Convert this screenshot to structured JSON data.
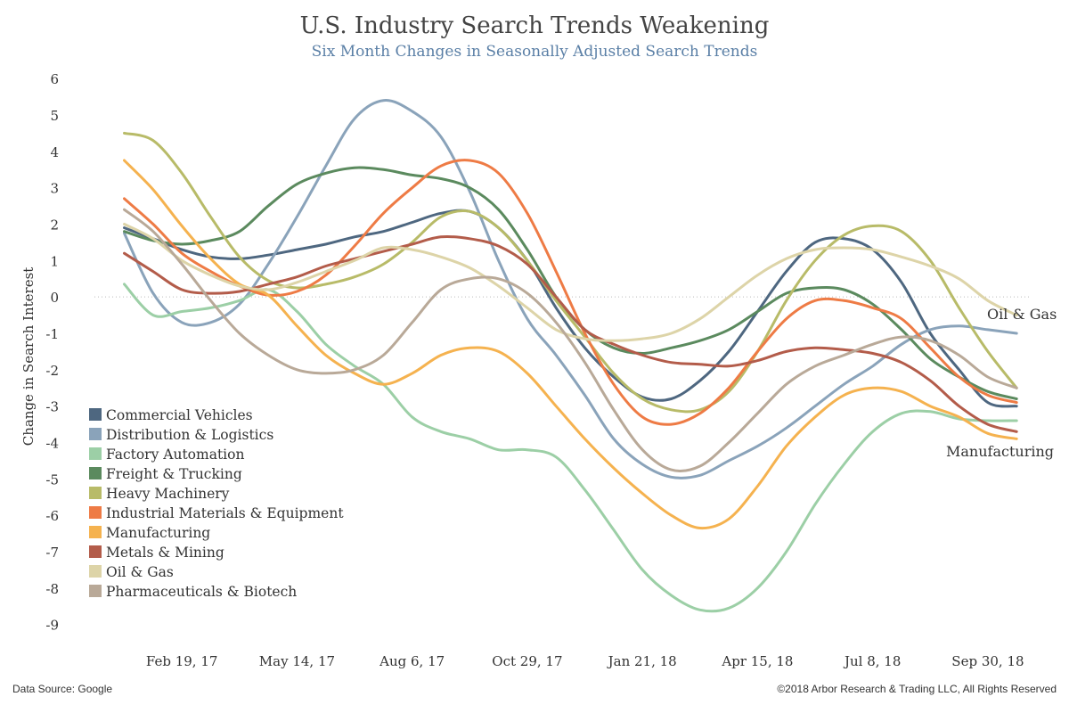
{
  "title": "U.S. Industry Search Trends Weakening",
  "subtitle": "Six Month Changes in Seasonally Adjusted Search Trends",
  "source": "Data Source: Google",
  "copyright": "©2018 Arbor Research & Trading LLC,  All Rights Reserved",
  "chart_data": {
    "type": "line",
    "title": "U.S. Industry Search Trends Weakening",
    "subtitle": "Six Month Changes in Seasonally Adjusted Search Trends",
    "ylabel": "Change in Search Interest",
    "xlabel": "",
    "ylim": [
      -9.4,
      6.2
    ],
    "yticks": [
      6,
      5,
      4,
      3,
      2,
      1,
      0,
      -1,
      -2,
      -3,
      -4,
      -5,
      -6,
      -7,
      -8,
      -9
    ],
    "x_range": [
      "2016-12-25",
      "2018-10-28"
    ],
    "xticks": [
      {
        "date": "2017-02-19",
        "label": "Feb 19, 17"
      },
      {
        "date": "2017-05-14",
        "label": "May 14, 17"
      },
      {
        "date": "2017-08-06",
        "label": "Aug 6, 17"
      },
      {
        "date": "2017-10-29",
        "label": "Oct 29, 17"
      },
      {
        "date": "2018-01-21",
        "label": "Jan 21, 18"
      },
      {
        "date": "2018-04-15",
        "label": "Apr 15, 18"
      },
      {
        "date": "2018-07-08",
        "label": "Jul 8, 18"
      },
      {
        "date": "2018-09-30",
        "label": "Sep 30, 18"
      }
    ],
    "zero_line": true,
    "grid": false,
    "legend_position": "bottom-left",
    "x": [
      "2017-01-08",
      "2017-01-29",
      "2017-02-19",
      "2017-03-12",
      "2017-04-02",
      "2017-04-23",
      "2017-05-14",
      "2017-06-04",
      "2017-06-25",
      "2017-07-16",
      "2017-08-06",
      "2017-08-27",
      "2017-09-17",
      "2017-10-08",
      "2017-10-29",
      "2017-11-19",
      "2017-12-10",
      "2017-12-31",
      "2018-01-21",
      "2018-02-11",
      "2018-03-04",
      "2018-03-25",
      "2018-04-15",
      "2018-05-06",
      "2018-05-27",
      "2018-06-17",
      "2018-07-08",
      "2018-07-29",
      "2018-08-19",
      "2018-09-09",
      "2018-09-30",
      "2018-10-21"
    ],
    "series": [
      {
        "name": "Commercial Vehicles",
        "color": "#4e6780",
        "values": [
          1.9,
          1.6,
          1.3,
          1.1,
          1.05,
          1.15,
          1.3,
          1.45,
          1.65,
          1.8,
          2.05,
          2.3,
          2.35,
          1.9,
          1.0,
          -0.3,
          -1.4,
          -2.2,
          -2.75,
          -2.8,
          -2.3,
          -1.5,
          -0.4,
          0.7,
          1.5,
          1.6,
          1.3,
          0.4,
          -1.0,
          -2.0,
          -2.9,
          -3.0
        ]
      },
      {
        "name": "Distribution & Logistics",
        "color": "#8aa3ba",
        "values": [
          1.75,
          0.1,
          -0.7,
          -0.7,
          -0.2,
          0.9,
          2.2,
          3.6,
          4.9,
          5.4,
          5.1,
          4.4,
          2.9,
          1.0,
          -0.6,
          -1.6,
          -2.7,
          -3.9,
          -4.6,
          -4.95,
          -4.9,
          -4.5,
          -4.1,
          -3.6,
          -3.0,
          -2.4,
          -1.9,
          -1.3,
          -0.9,
          -0.8,
          -0.9,
          -1.0
        ]
      },
      {
        "name": "Factory Automation",
        "color": "#9ccfa6",
        "values": [
          0.35,
          -0.5,
          -0.4,
          -0.3,
          -0.1,
          0.2,
          -0.4,
          -1.3,
          -1.9,
          -2.4,
          -3.3,
          -3.7,
          -3.9,
          -4.2,
          -4.2,
          -4.4,
          -5.3,
          -6.4,
          -7.5,
          -8.2,
          -8.6,
          -8.55,
          -8.0,
          -7.0,
          -5.7,
          -4.6,
          -3.7,
          -3.2,
          -3.15,
          -3.35,
          -3.4,
          -3.4
        ]
      },
      {
        "name": "Freight & Trucking",
        "color": "#5b8a5e",
        "values": [
          1.8,
          1.55,
          1.45,
          1.55,
          1.8,
          2.5,
          3.1,
          3.4,
          3.55,
          3.5,
          3.35,
          3.25,
          3.0,
          2.4,
          1.3,
          0.0,
          -0.9,
          -1.4,
          -1.55,
          -1.4,
          -1.2,
          -0.9,
          -0.4,
          0.1,
          0.25,
          0.2,
          -0.2,
          -0.9,
          -1.7,
          -2.2,
          -2.6,
          -2.8
        ]
      },
      {
        "name": "Heavy Machinery",
        "color": "#b8bb68",
        "values": [
          4.5,
          4.3,
          3.4,
          2.2,
          1.1,
          0.45,
          0.25,
          0.35,
          0.55,
          0.9,
          1.5,
          2.2,
          2.35,
          1.9,
          1.0,
          -0.1,
          -1.1,
          -2.1,
          -2.8,
          -3.1,
          -3.1,
          -2.6,
          -1.5,
          -0.1,
          1.0,
          1.7,
          1.95,
          1.8,
          1.0,
          -0.3,
          -1.5,
          -2.5
        ]
      },
      {
        "name": "Industrial Materials & Equipment",
        "color": "#ee7b45",
        "values": [
          2.7,
          2.0,
          1.2,
          0.7,
          0.3,
          0.05,
          0.15,
          0.6,
          1.4,
          2.3,
          3.0,
          3.6,
          3.75,
          3.4,
          2.3,
          0.7,
          -1.0,
          -2.4,
          -3.3,
          -3.5,
          -3.2,
          -2.5,
          -1.5,
          -0.6,
          -0.1,
          -0.1,
          -0.3,
          -0.6,
          -1.4,
          -2.2,
          -2.7,
          -2.9
        ]
      },
      {
        "name": "Manufacturing",
        "color": "#f5b24f",
        "values": [
          3.75,
          2.95,
          1.95,
          1.05,
          0.35,
          0.05,
          -0.8,
          -1.6,
          -2.1,
          -2.4,
          -2.1,
          -1.6,
          -1.4,
          -1.5,
          -2.1,
          -3.0,
          -3.9,
          -4.7,
          -5.4,
          -6.0,
          -6.35,
          -6.1,
          -5.2,
          -4.1,
          -3.3,
          -2.7,
          -2.5,
          -2.6,
          -3.0,
          -3.3,
          -3.75,
          -3.9
        ]
      },
      {
        "name": "Metals & Mining",
        "color": "#b35c4a",
        "values": [
          1.2,
          0.7,
          0.2,
          0.1,
          0.15,
          0.35,
          0.55,
          0.85,
          1.05,
          1.25,
          1.45,
          1.65,
          1.6,
          1.4,
          0.9,
          0.0,
          -0.9,
          -1.3,
          -1.6,
          -1.8,
          -1.85,
          -1.9,
          -1.75,
          -1.5,
          -1.4,
          -1.45,
          -1.55,
          -1.8,
          -2.3,
          -3.0,
          -3.5,
          -3.7
        ]
      },
      {
        "name": "Oil & Gas",
        "color": "#ddd4a8",
        "values": [
          2.0,
          1.6,
          1.0,
          0.6,
          0.3,
          0.2,
          0.4,
          0.7,
          1.0,
          1.35,
          1.3,
          1.1,
          0.8,
          0.3,
          -0.3,
          -0.9,
          -1.15,
          -1.2,
          -1.15,
          -1.0,
          -0.6,
          0.0,
          0.6,
          1.05,
          1.3,
          1.35,
          1.3,
          1.1,
          0.85,
          0.5,
          -0.1,
          -0.5
        ]
      },
      {
        "name": "Pharmaceuticals & Biotech",
        "color": "#b9a998",
        "values": [
          2.4,
          1.8,
          0.9,
          -0.1,
          -1.0,
          -1.6,
          -2.0,
          -2.1,
          -2.0,
          -1.6,
          -0.7,
          0.2,
          0.5,
          0.5,
          0.1,
          -0.7,
          -1.8,
          -3.1,
          -4.2,
          -4.75,
          -4.65,
          -4.0,
          -3.2,
          -2.4,
          -1.9,
          -1.6,
          -1.3,
          -1.1,
          -1.2,
          -1.6,
          -2.2,
          -2.5
        ]
      }
    ],
    "annotations": [
      {
        "text": "Oil & Gas",
        "series": "Oil & Gas"
      },
      {
        "text": "Manufacturing",
        "series": "Manufacturing"
      }
    ]
  }
}
